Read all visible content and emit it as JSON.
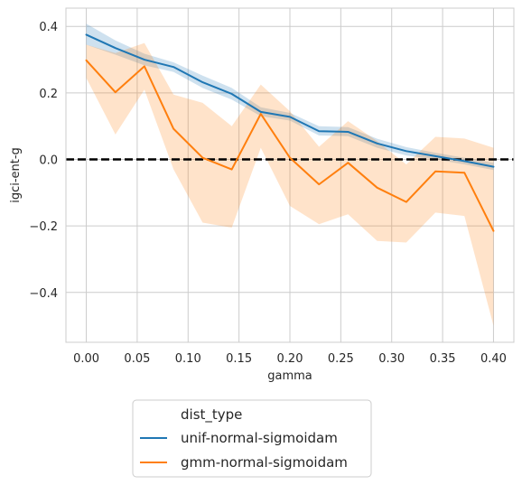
{
  "chart_data": {
    "type": "line",
    "xlabel": "gamma",
    "ylabel": "igci-ent-g",
    "xlim": [
      -0.02,
      0.42
    ],
    "ylim": [
      -0.55,
      0.455
    ],
    "xticks": [
      0.0,
      0.05,
      0.1,
      0.15,
      0.2,
      0.25,
      0.3,
      0.35,
      0.4
    ],
    "xtick_labels": [
      "0.00",
      "0.05",
      "0.10",
      "0.15",
      "0.20",
      "0.25",
      "0.30",
      "0.35",
      "0.40"
    ],
    "yticks": [
      -0.4,
      -0.2,
      0.0,
      0.2,
      0.4
    ],
    "ytick_labels": [
      "−0.4",
      "−0.2",
      "0.0",
      "0.2",
      "0.4"
    ],
    "grid": true,
    "reference_line": {
      "y": 0.0,
      "style": "dashed",
      "color": "#000000"
    },
    "x": [
      0.0,
      0.0286,
      0.0571,
      0.0857,
      0.1143,
      0.1429,
      0.1714,
      0.2,
      0.2286,
      0.2571,
      0.2857,
      0.3143,
      0.3429,
      0.3714,
      0.4
    ],
    "legend": {
      "title": "dist_type",
      "placement": "below-center"
    },
    "series": [
      {
        "name": "unif-normal-sigmoidam",
        "color": "#1f77b4",
        "values": [
          0.375,
          0.335,
          0.3,
          0.278,
          0.232,
          0.197,
          0.143,
          0.128,
          0.085,
          0.083,
          0.048,
          0.025,
          0.01,
          -0.005,
          -0.022
        ],
        "ci_lower": [
          0.345,
          0.315,
          0.283,
          0.263,
          0.215,
          0.18,
          0.13,
          0.117,
          0.072,
          0.07,
          0.035,
          0.012,
          0.0,
          -0.015,
          -0.032
        ],
        "ci_upper": [
          0.408,
          0.358,
          0.318,
          0.292,
          0.252,
          0.215,
          0.157,
          0.14,
          0.1,
          0.097,
          0.062,
          0.037,
          0.02,
          0.005,
          -0.01
        ]
      },
      {
        "name": "gmm-normal-sigmoidam",
        "color": "#ff7f0e",
        "values": [
          0.298,
          0.202,
          0.28,
          0.092,
          0.005,
          -0.03,
          0.137,
          0.005,
          -0.075,
          -0.01,
          -0.085,
          -0.128,
          -0.036,
          -0.04,
          -0.215
        ],
        "ci_lower": [
          0.245,
          0.075,
          0.21,
          -0.03,
          -0.19,
          -0.205,
          0.035,
          -0.14,
          -0.195,
          -0.165,
          -0.245,
          -0.25,
          -0.16,
          -0.17,
          -0.5
        ],
        "ci_upper": [
          0.345,
          0.32,
          0.35,
          0.195,
          0.17,
          0.1,
          0.225,
          0.145,
          0.038,
          0.115,
          0.055,
          -0.015,
          0.068,
          0.063,
          0.035
        ]
      }
    ]
  }
}
